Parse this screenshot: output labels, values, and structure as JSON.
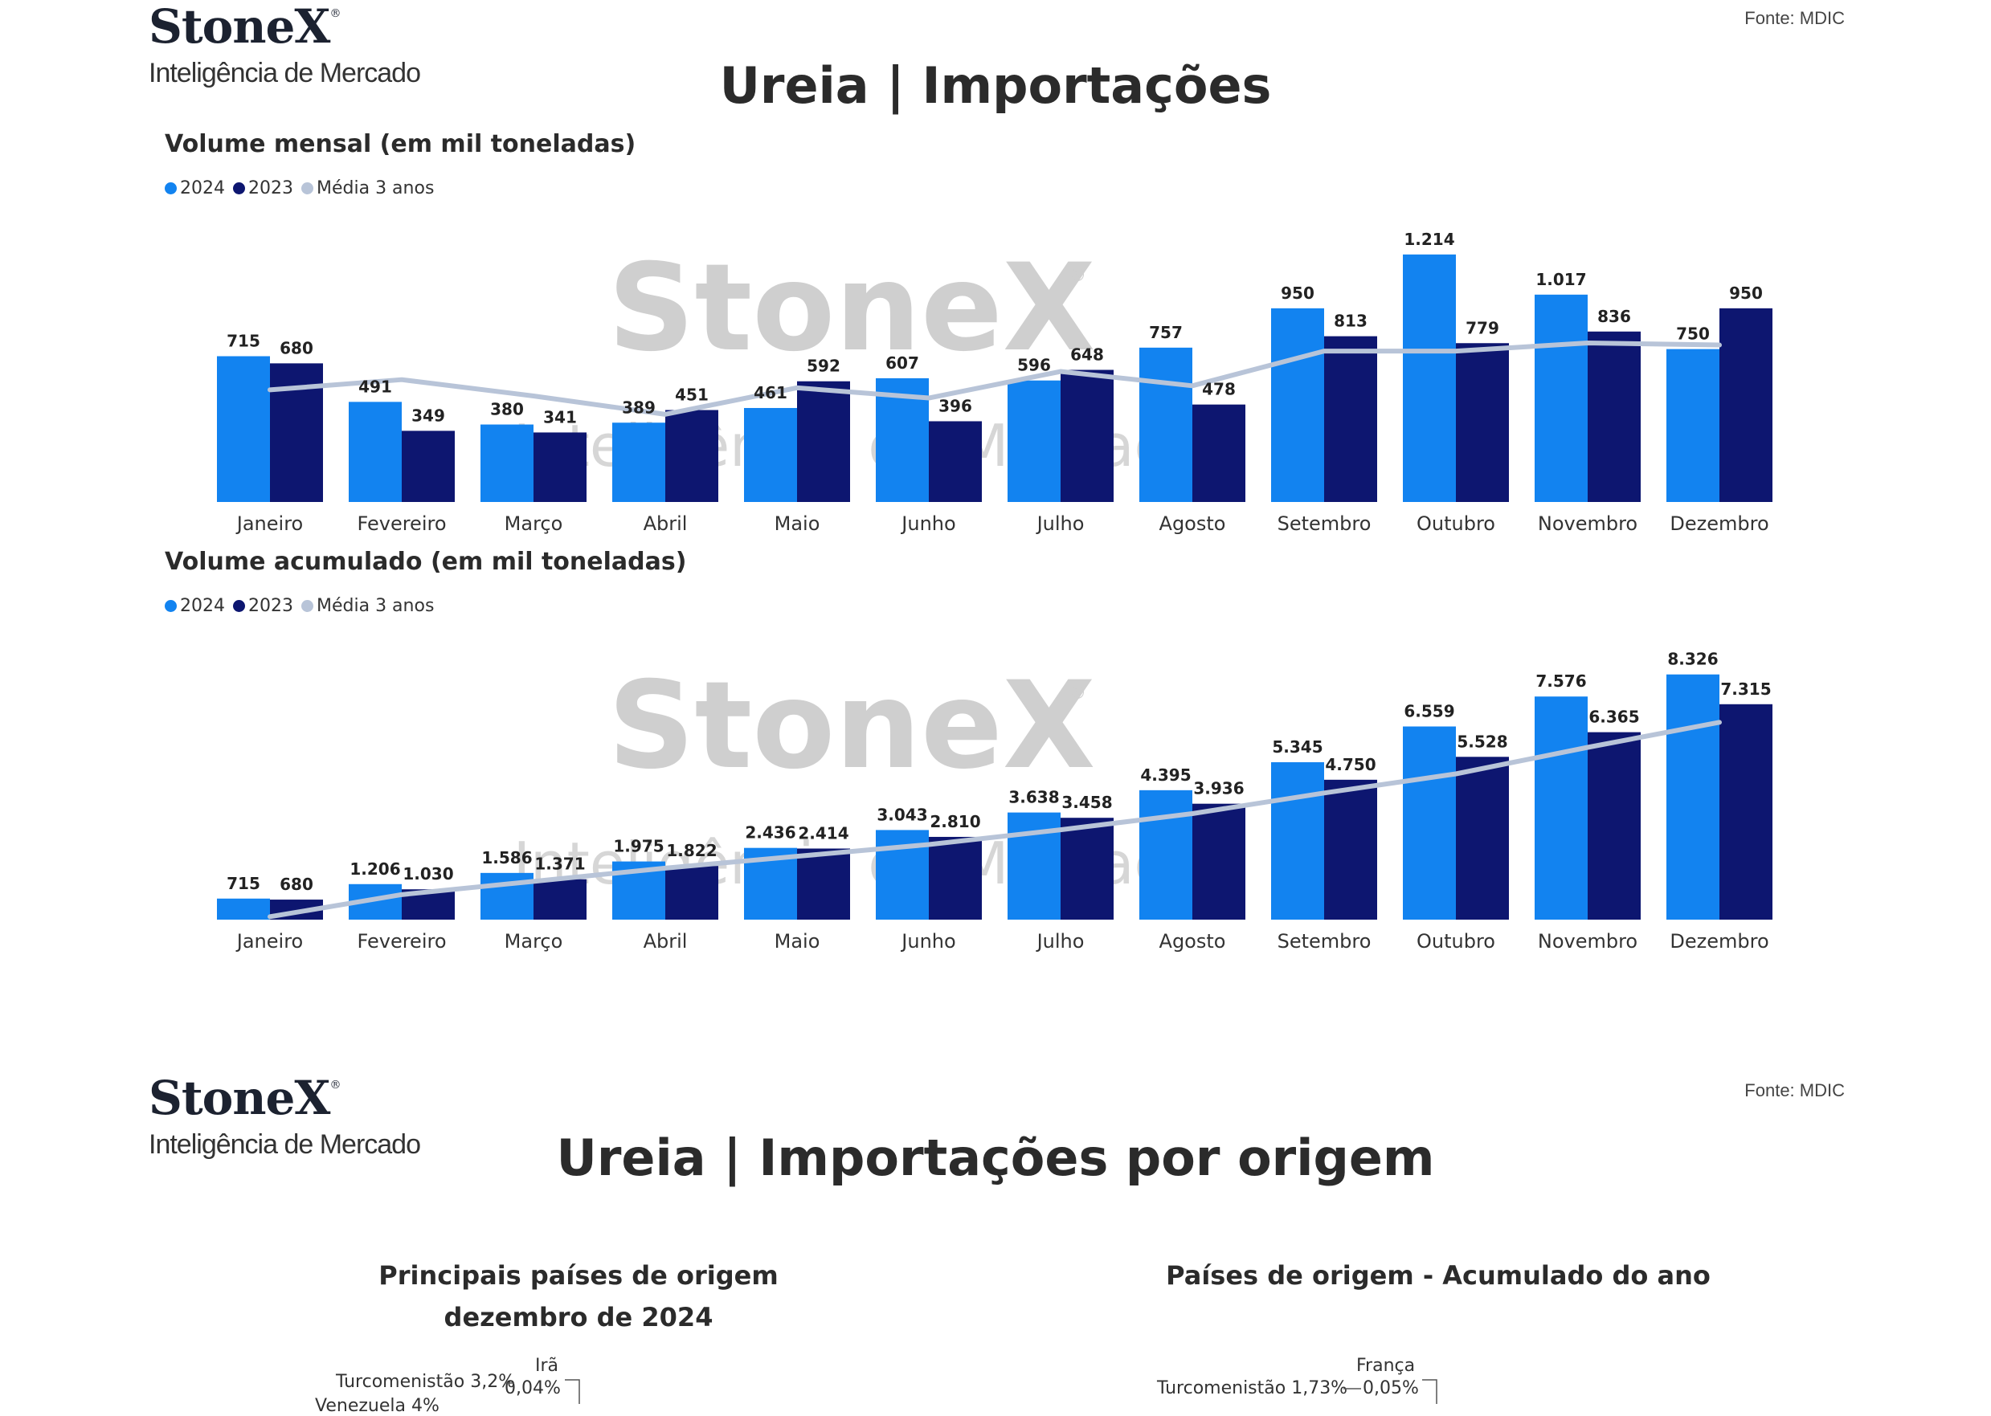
{
  "colors": {
    "y2024": "#1283f0",
    "y2023": "#0d1670",
    "avg": "#b8c4d8"
  },
  "page1": {
    "logo": {
      "word": "StoneX",
      "mark": "®",
      "sub": "Inteligência de Mercado"
    },
    "source": "Fonte: MDIC",
    "title": "Ureia | Importações"
  },
  "page2": {
    "logo": {
      "word": "StoneX",
      "mark": "®",
      "sub": "Inteligência de Mercado"
    },
    "source": "Fonte: MDIC",
    "title": "Ureia | Importações por origem",
    "left_title": [
      "Principais países de origem",
      "dezembro de 2024"
    ],
    "right_title": "Países de origem - Acumulado do ano",
    "left_labels": {
      "a": "Irã",
      "a_val": "0,04%",
      "b": "Turcomenistão 3,2%",
      "c": "Venezuela 4%"
    },
    "right_labels": {
      "a": "França",
      "a_val": "0,05%",
      "b": "Turcomenistão 1,73%"
    }
  },
  "chart_data": [
    {
      "type": "bar",
      "title": "Volume mensal (em mil toneladas)",
      "categories": [
        "Janeiro",
        "Fevereiro",
        "Março",
        "Abril",
        "Maio",
        "Junho",
        "Julho",
        "Agosto",
        "Setembro",
        "Outubro",
        "Novembro",
        "Dezembro"
      ],
      "series": [
        {
          "name": "2024",
          "values": [
            715,
            491,
            380,
            389,
            461,
            607,
            596,
            757,
            950,
            1214,
            1017,
            750
          ],
          "labels": [
            "715",
            "491",
            "380",
            "389",
            "461",
            "607",
            "596",
            "757",
            "950",
            "1.214",
            "1.017",
            "750"
          ]
        },
        {
          "name": "2023",
          "values": [
            680,
            349,
            341,
            451,
            592,
            396,
            648,
            478,
            813,
            779,
            836,
            950
          ],
          "labels": [
            "680",
            "349",
            "341",
            "451",
            "592",
            "396",
            "648",
            "478",
            "813",
            "779",
            "836",
            "950"
          ]
        },
        {
          "name": "Média 3 anos",
          "type": "line",
          "values": [
            550,
            600,
            520,
            430,
            560,
            510,
            640,
            570,
            740,
            740,
            780,
            770
          ]
        }
      ],
      "ylim": [
        0,
        1300
      ],
      "legend": "top-left",
      "watermark": {
        "word": "StoneX",
        "mark": "®",
        "sub": "Inteligência de Mercado"
      }
    },
    {
      "type": "bar",
      "title": "Volume acumulado (em mil toneladas)",
      "categories": [
        "Janeiro",
        "Fevereiro",
        "Março",
        "Abril",
        "Maio",
        "Junho",
        "Julho",
        "Agosto",
        "Setembro",
        "Outubro",
        "Novembro",
        "Dezembro"
      ],
      "series": [
        {
          "name": "2024",
          "values": [
            715,
            1206,
            1586,
            1975,
            2436,
            3043,
            3638,
            4395,
            5345,
            6559,
            7576,
            8326
          ],
          "labels": [
            "715",
            "1.206",
            "1.586",
            "1.975",
            "2.436",
            "3.043",
            "3.638",
            "4.395",
            "5.345",
            "6.559",
            "7.576",
            "8.326"
          ]
        },
        {
          "name": "2023",
          "values": [
            680,
            1030,
            1371,
            1822,
            2414,
            2810,
            3458,
            3936,
            4750,
            5528,
            6365,
            7315
          ],
          "labels": [
            "680",
            "1.030",
            "1.371",
            "1.822",
            "2.414",
            "2.810",
            "3.458",
            "3.936",
            "4.750",
            "5.528",
            "6.365",
            "7.315"
          ]
        },
        {
          "name": "Média 3 anos",
          "type": "line",
          "values": [
            100,
            850,
            1300,
            1750,
            2150,
            2550,
            3050,
            3600,
            4300,
            4950,
            5850,
            6700
          ]
        }
      ],
      "ylim": [
        0,
        9000
      ],
      "legend": "top-left",
      "watermark": {
        "word": "StoneX",
        "mark": "®",
        "sub": "Inteligência de Mercado"
      }
    }
  ]
}
